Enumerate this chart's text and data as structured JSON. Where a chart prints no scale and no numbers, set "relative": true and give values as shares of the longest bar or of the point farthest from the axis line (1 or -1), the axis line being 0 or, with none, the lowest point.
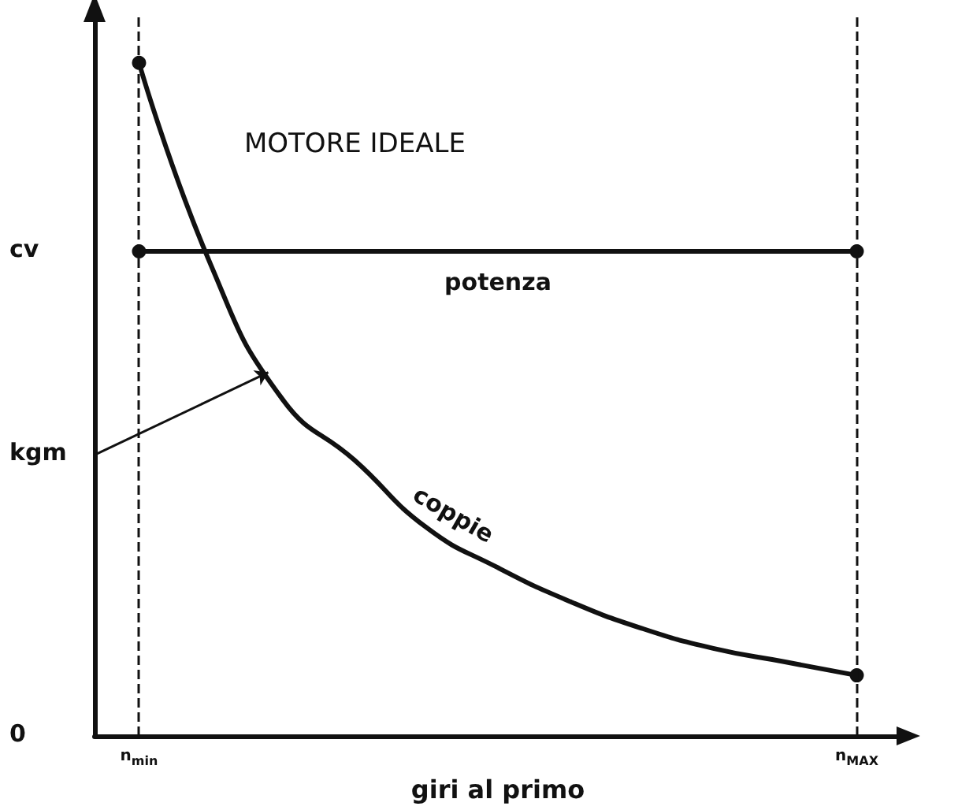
{
  "chart_data": {
    "type": "line",
    "title": "MOTORE IDEALE",
    "xlabel": "giri al primo",
    "relative": true,
    "categories": [
      "n$_{min}$",
      null,
      null,
      null,
      null,
      null,
      null,
      null,
      null,
      null,
      "n$_{MAX}$"
    ],
    "series": [
      {
        "name": "potenza",
        "color": "#111111",
        "values": [
          0.72,
          0.72,
          0.72,
          0.72,
          0.72,
          0.72,
          0.72,
          0.72,
          0.72,
          0.72,
          0.72
        ]
      },
      {
        "name": "coppie",
        "color": "#111111",
        "values": [
          1,
          0.7,
          0.5,
          0.41,
          0.31,
          0.25,
          0.2,
          0.16,
          0.13,
          0.11,
          0.09
        ]
      }
    ],
    "annotations": [
      "cv",
      "kgm",
      "0"
    ],
    "ref_lines": [
      {
        "axis": "x",
        "value": "n$_{min}$",
        "line_style": "dashed",
        "color": "#111111"
      },
      {
        "axis": "x",
        "value": "n$_{MAX}$",
        "line_style": "dashed",
        "color": "#111111"
      }
    ],
    "line_style": "solid",
    "grid": false,
    "legend": false
  }
}
